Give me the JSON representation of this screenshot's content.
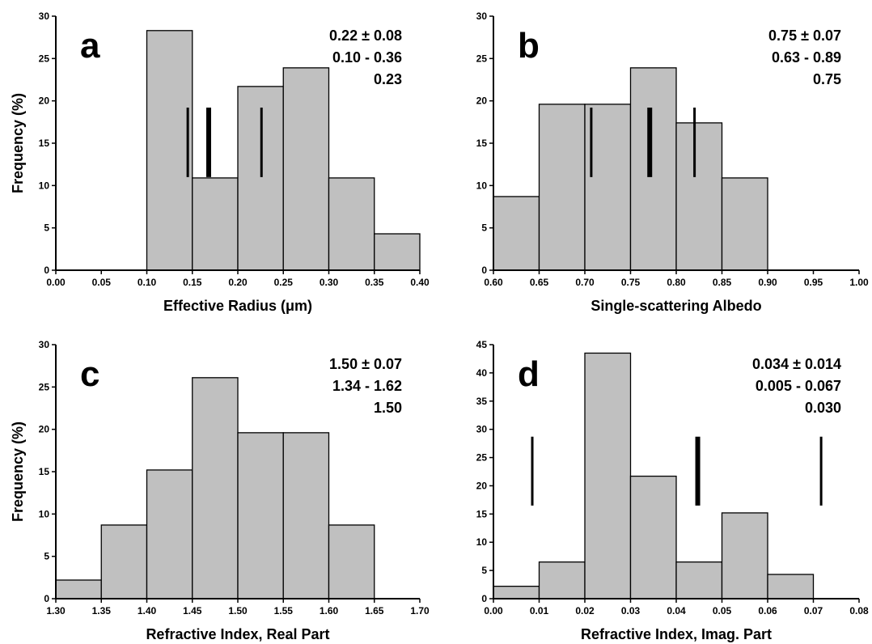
{
  "chart_data": [
    {
      "type": "bar",
      "panel": "a",
      "xlabel": "Effective Radius (μm)",
      "ylabel": "Frequency (%)",
      "xlim": [
        0,
        0.4
      ],
      "ylim": [
        0,
        30
      ],
      "xticks": [
        "0.00",
        "0.05",
        "0.10",
        "0.15",
        "0.20",
        "0.25",
        "0.30",
        "0.35",
        "0.40"
      ],
      "yticks": [
        "0",
        "5",
        "10",
        "15",
        "20",
        "25",
        "30"
      ],
      "bins": [
        {
          "from": 0.1,
          "to": 0.15,
          "value": 28.3
        },
        {
          "from": 0.15,
          "to": 0.2,
          "value": 10.9
        },
        {
          "from": 0.2,
          "to": 0.25,
          "value": 21.7
        },
        {
          "from": 0.25,
          "to": 0.3,
          "value": 23.9
        },
        {
          "from": 0.3,
          "to": 0.35,
          "value": 10.9
        },
        {
          "from": 0.35,
          "to": 0.4,
          "value": 4.3
        }
      ],
      "markers": [
        {
          "x": 0.145,
          "kind": "thin"
        },
        {
          "x": 0.168,
          "kind": "thick"
        },
        {
          "x": 0.226,
          "kind": "thin"
        }
      ],
      "marker_range": [
        11,
        19.2
      ],
      "stats": [
        "0.22 ± 0.08",
        "0.10 - 0.36",
        "0.23"
      ]
    },
    {
      "type": "bar",
      "panel": "b",
      "xlabel": "Single-scattering Albedo",
      "ylabel": "",
      "xlim": [
        0.6,
        1.0
      ],
      "ylim": [
        0,
        30
      ],
      "xticks": [
        "0.60",
        "0.65",
        "0.70",
        "0.75",
        "0.80",
        "0.85",
        "0.90",
        "0.95",
        "1.00"
      ],
      "yticks": [
        "0",
        "5",
        "10",
        "15",
        "20",
        "25",
        "30"
      ],
      "bins": [
        {
          "from": 0.6,
          "to": 0.65,
          "value": 8.7
        },
        {
          "from": 0.65,
          "to": 0.7,
          "value": 19.6
        },
        {
          "from": 0.7,
          "to": 0.75,
          "value": 19.6
        },
        {
          "from": 0.75,
          "to": 0.8,
          "value": 23.9
        },
        {
          "from": 0.8,
          "to": 0.85,
          "value": 17.4
        },
        {
          "from": 0.85,
          "to": 0.9,
          "value": 10.9
        }
      ],
      "markers": [
        {
          "x": 0.707,
          "kind": "thin"
        },
        {
          "x": 0.771,
          "kind": "thick"
        },
        {
          "x": 0.82,
          "kind": "thin"
        }
      ],
      "marker_range": [
        11,
        19.2
      ],
      "stats": [
        "0.75 ± 0.07",
        "0.63 - 0.89",
        "0.75"
      ]
    },
    {
      "type": "bar",
      "panel": "c",
      "xlabel": "Refractive Index, Real Part",
      "ylabel": "Frequency (%)",
      "xlim": [
        1.3,
        1.7
      ],
      "ylim": [
        0,
        30
      ],
      "xticks": [
        "1.30",
        "1.35",
        "1.40",
        "1.45",
        "1.50",
        "1.55",
        "1.60",
        "1.65",
        "1.70"
      ],
      "yticks": [
        "0",
        "5",
        "10",
        "15",
        "20",
        "25",
        "30"
      ],
      "bins": [
        {
          "from": 1.3,
          "to": 1.35,
          "value": 2.2
        },
        {
          "from": 1.35,
          "to": 1.4,
          "value": 8.7
        },
        {
          "from": 1.4,
          "to": 1.45,
          "value": 15.2
        },
        {
          "from": 1.45,
          "to": 1.5,
          "value": 26.1
        },
        {
          "from": 1.5,
          "to": 1.55,
          "value": 19.6
        },
        {
          "from": 1.55,
          "to": 1.6,
          "value": 19.6
        },
        {
          "from": 1.6,
          "to": 1.65,
          "value": 8.7
        }
      ],
      "markers": [],
      "marker_range": [
        11,
        19.2
      ],
      "stats": [
        "1.50 ± 0.07",
        "1.34 - 1.62",
        "1.50"
      ]
    },
    {
      "type": "bar",
      "panel": "d",
      "xlabel": "Refractive Index, Imag. Part",
      "ylabel": "",
      "xlim": [
        0,
        0.08
      ],
      "ylim": [
        0,
        45
      ],
      "xticks": [
        "0.00",
        "0.01",
        "0.02",
        "0.03",
        "0.04",
        "0.05",
        "0.06",
        "0.07",
        "0.08"
      ],
      "yticks": [
        "0",
        "5",
        "10",
        "15",
        "20",
        "25",
        "30",
        "35",
        "40",
        "45"
      ],
      "bins": [
        {
          "from": 0.0,
          "to": 0.01,
          "value": 2.2
        },
        {
          "from": 0.01,
          "to": 0.02,
          "value": 6.5
        },
        {
          "from": 0.02,
          "to": 0.03,
          "value": 43.5
        },
        {
          "from": 0.03,
          "to": 0.04,
          "value": 21.7
        },
        {
          "from": 0.04,
          "to": 0.05,
          "value": 6.5
        },
        {
          "from": 0.05,
          "to": 0.06,
          "value": 15.2
        },
        {
          "from": 0.06,
          "to": 0.07,
          "value": 4.3
        }
      ],
      "markers": [
        {
          "x": 0.0085,
          "kind": "thin"
        },
        {
          "x": 0.0447,
          "kind": "thick"
        },
        {
          "x": 0.0717,
          "kind": "thin"
        }
      ],
      "marker_range": [
        16.5,
        28.7
      ],
      "stats": [
        "0.034 ± 0.014",
        "0.005 - 0.067",
        "0.030"
      ]
    }
  ],
  "style": {
    "bar_fill": "#c0c0c0",
    "bar_stroke": "#000000",
    "marker_color": "#000000"
  }
}
